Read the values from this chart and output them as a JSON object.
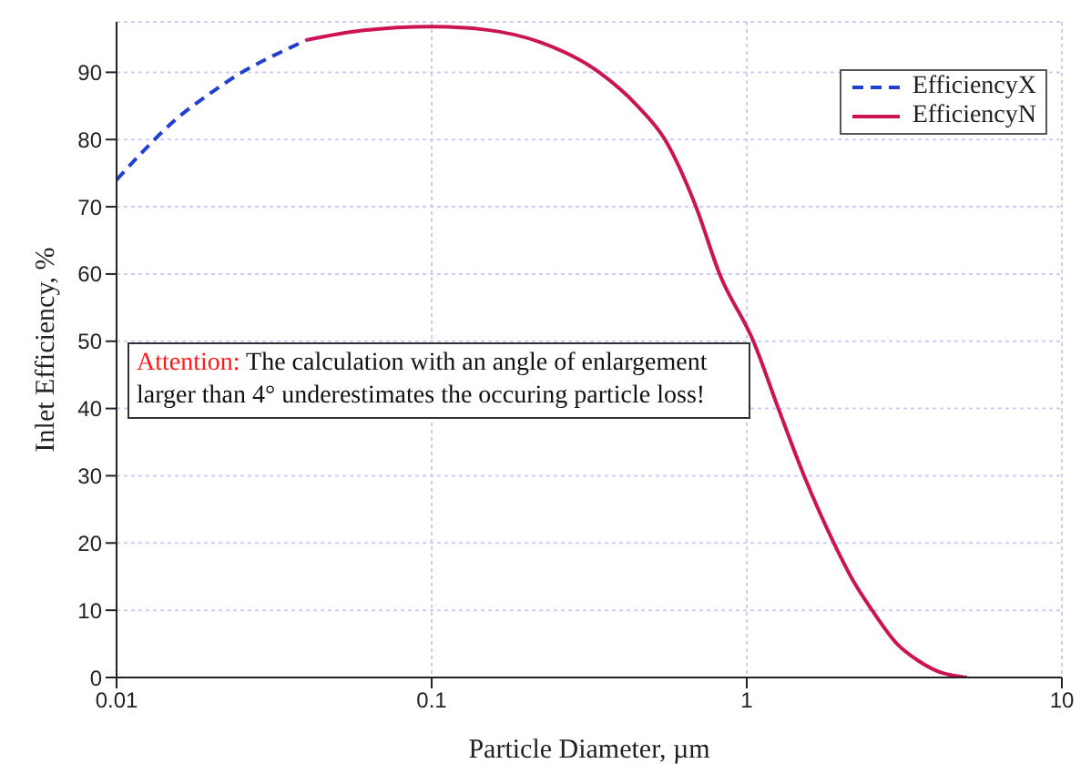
{
  "chart_data": {
    "type": "line",
    "xlabel": "Particle Diameter, µm",
    "ylabel": "Inlet Efficiency, %",
    "log": "x",
    "xlim": [
      0.01,
      10
    ],
    "xticks": [
      0.01,
      0.1,
      1,
      10
    ],
    "ylim": [
      0,
      97.5
    ],
    "yticks": [
      0,
      10,
      20,
      30,
      40,
      50,
      60,
      70,
      80,
      90
    ],
    "grid": true,
    "legend": "top right",
    "marker": "none",
    "annotations": [
      "Attention:",
      "The calculation with an angle of enlargement larger than 4° underestimates the occuring particle loss!"
    ],
    "series": [
      {
        "name": "EfficiencyX",
        "color": "#2040d0",
        "line_style": "dashed",
        "x": [
          0.01,
          0.012,
          0.015,
          0.02,
          0.025,
          0.03,
          0.035,
          0.04
        ],
        "values": [
          74,
          78,
          82.5,
          87,
          90,
          92,
          93.5,
          94.8
        ]
      },
      {
        "name": "EfficiencyN",
        "color": "#cc1455",
        "line_style": "solid",
        "x": [
          0.04,
          0.06,
          0.1,
          0.15,
          0.22,
          0.34,
          0.45,
          0.55,
          0.69,
          0.82,
          1.05,
          1.26,
          1.52,
          1.89,
          2.2,
          2.5,
          3,
          3.5,
          4,
          4.5,
          5
        ],
        "values": [
          94.8,
          96.2,
          96.8,
          96.3,
          94.5,
          90,
          85,
          80,
          70,
          60,
          50,
          40,
          30,
          20,
          14,
          10,
          5,
          2.5,
          1,
          0.3,
          0
        ]
      }
    ]
  }
}
